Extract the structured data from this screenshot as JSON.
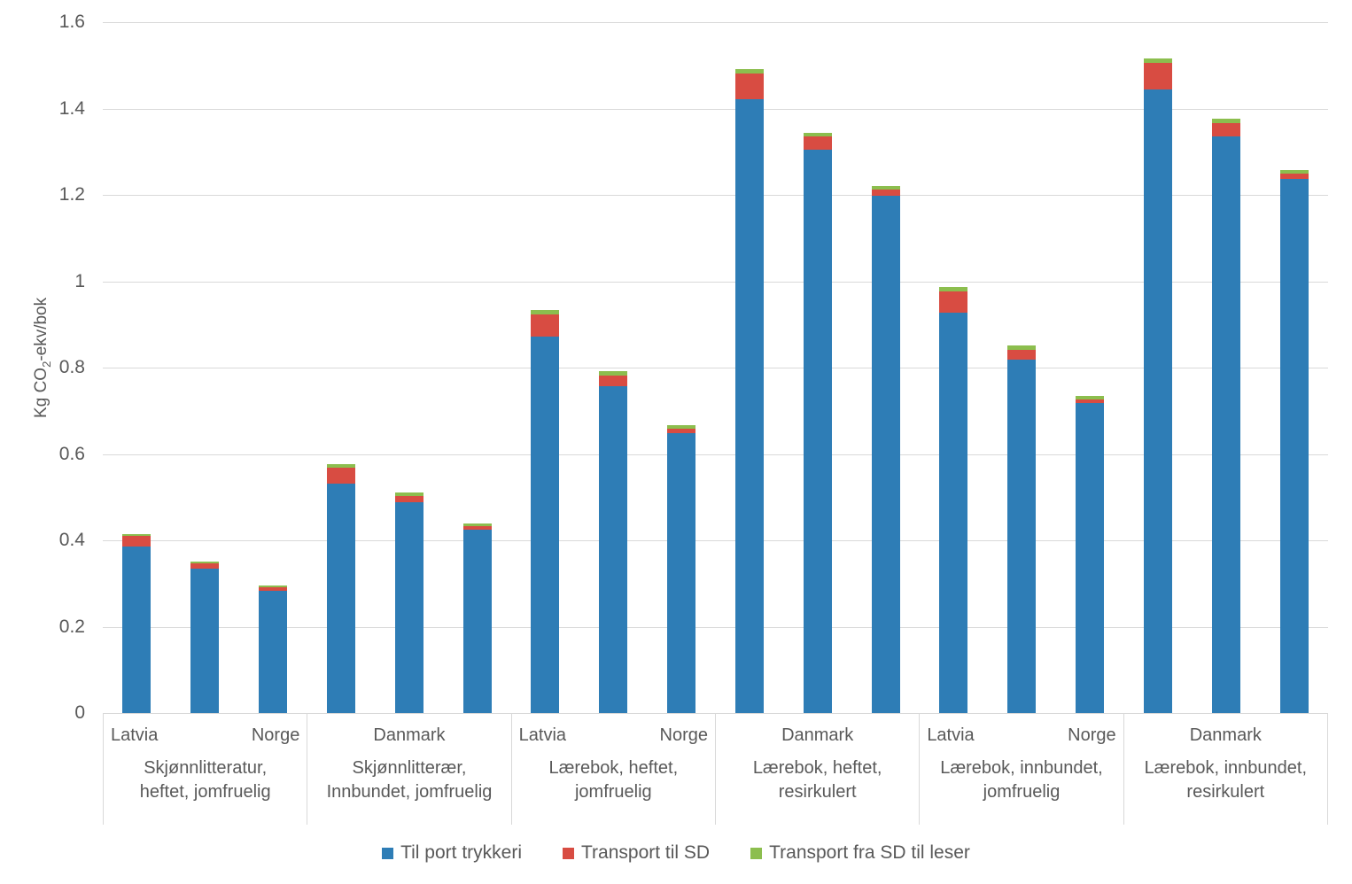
{
  "chart": {
    "y_axis": {
      "title_prefix": "Kg CO",
      "title_sub": "2",
      "title_suffix": "-ekv/bok",
      "tick_labels": [
        "0",
        "0.2",
        "0.4",
        "0.6",
        "0.8",
        "1",
        "1.2",
        "1.4",
        "1.6"
      ]
    },
    "colors": {
      "blue": "#2e7db6",
      "red": "#d84c42",
      "green": "#8cbe4e",
      "gridline": "#d9d9d9",
      "text": "#595959"
    }
  },
  "chart_data": {
    "type": "bar",
    "stacked": true,
    "title": "",
    "ylabel": "Kg CO2-ekv/bok",
    "ylim": [
      0,
      1.6
    ],
    "ytick_step": 0.2,
    "grid": "horizontal",
    "legend_position": "bottom",
    "groups": [
      {
        "title_line1": "Skjønnlitteratur,",
        "title_line2": "heftet, jomfruelig",
        "label_layout": "latvia-norge",
        "visible_country_labels": [
          "Latvia",
          "Norge"
        ]
      },
      {
        "title_line1": "Skjønnlitterær,",
        "title_line2": "Innbundet, jomfruelig",
        "label_layout": "danmark-centered",
        "visible_country_labels": [
          "Danmark"
        ]
      },
      {
        "title_line1": "Lærebok, heftet,",
        "title_line2": "jomfruelig",
        "label_layout": "latvia-norge",
        "visible_country_labels": [
          "Latvia",
          "Norge"
        ]
      },
      {
        "title_line1": "Lærebok, heftet,",
        "title_line2": "resirkulert",
        "label_layout": "danmark-centered",
        "visible_country_labels": [
          "Danmark"
        ]
      },
      {
        "title_line1": "Lærebok, innbundet,",
        "title_line2": "jomfruelig",
        "label_layout": "latvia-norge",
        "visible_country_labels": [
          "Latvia",
          "Norge"
        ]
      },
      {
        "title_line1": "Lærebok, innbundet,",
        "title_line2": "resirkulert",
        "label_layout": "danmark-centered",
        "visible_country_labels": [
          "Danmark"
        ]
      }
    ],
    "bars_per_group": 3,
    "series": [
      {
        "name": "Til port trykkeri",
        "color": "#2e7db6",
        "values": [
          0.385,
          0.335,
          0.284,
          0.532,
          0.489,
          0.424,
          0.872,
          0.757,
          0.648,
          1.421,
          1.305,
          1.198,
          0.928,
          0.818,
          0.717,
          1.445,
          1.335,
          1.237
        ]
      },
      {
        "name": "Transport til SD",
        "color": "#d84c42",
        "values": [
          0.026,
          0.012,
          0.008,
          0.036,
          0.013,
          0.008,
          0.051,
          0.024,
          0.01,
          0.06,
          0.03,
          0.014,
          0.048,
          0.024,
          0.01,
          0.061,
          0.031,
          0.013
        ]
      },
      {
        "name": "Transport fra SD til leser",
        "color": "#8cbe4e",
        "values": [
          0.003,
          0.004,
          0.003,
          0.008,
          0.009,
          0.007,
          0.01,
          0.01,
          0.009,
          0.011,
          0.009,
          0.009,
          0.01,
          0.01,
          0.008,
          0.01,
          0.01,
          0.008
        ]
      }
    ]
  }
}
